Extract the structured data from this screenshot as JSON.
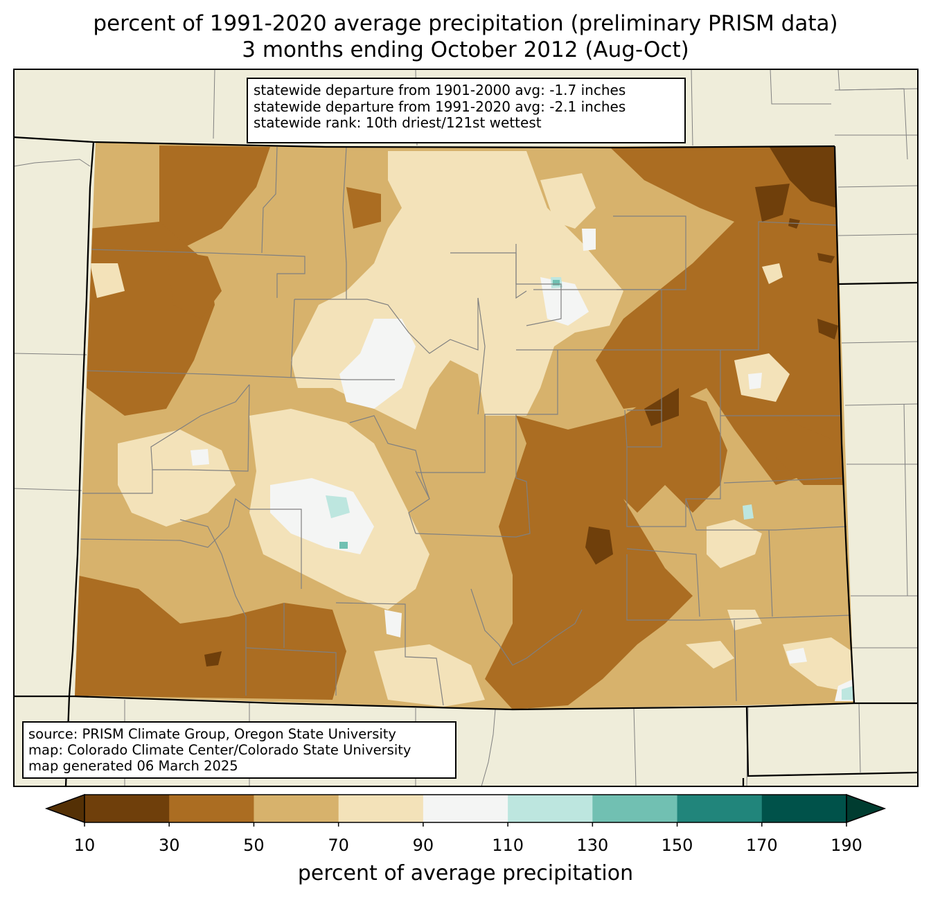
{
  "title": {
    "line1": "percent of 1991-2020 average precipitation (preliminary PRISM data)",
    "line2": "3 months ending October 2012 (Aug-Oct)"
  },
  "stats": {
    "line1": "statewide departure from 1901-2000 avg: -1.7 inches",
    "line2": "statewide departure from 1991-2020 avg: -2.1 inches",
    "line3": "statewide rank: 10th driest/121st wettest"
  },
  "credits": {
    "line1": "source: PRISM Climate Group, Oregon State University",
    "line2": "map: Colorado Climate Center/Colorado State University",
    "line3": "map generated 06 March 2025"
  },
  "colorbar": {
    "label": "percent of average precipitation",
    "ticks": [
      "10",
      "30",
      "50",
      "70",
      "90",
      "110",
      "130",
      "150",
      "170",
      "190"
    ],
    "bins": [
      {
        "range": "<10",
        "color": "#543005"
      },
      {
        "range": "10-30",
        "color": "#6f3f0b"
      },
      {
        "range": "30-50",
        "color": "#ab6d22"
      },
      {
        "range": "50-70",
        "color": "#d7b26c"
      },
      {
        "range": "70-90",
        "color": "#f3e2b9"
      },
      {
        "range": "90-110",
        "color": "#f4f5f4"
      },
      {
        "range": "110-130",
        "color": "#bde6df"
      },
      {
        "range": "130-150",
        "color": "#71c0b2"
      },
      {
        "range": "150-170",
        "color": "#21857b"
      },
      {
        "range": "170-190",
        "color": "#00524a"
      },
      {
        "range": ">190",
        "color": "#003c30"
      }
    ]
  },
  "colors": {
    "outside": "#efedda",
    "county_lines": "#808080",
    "state_lines": "#000000"
  }
}
